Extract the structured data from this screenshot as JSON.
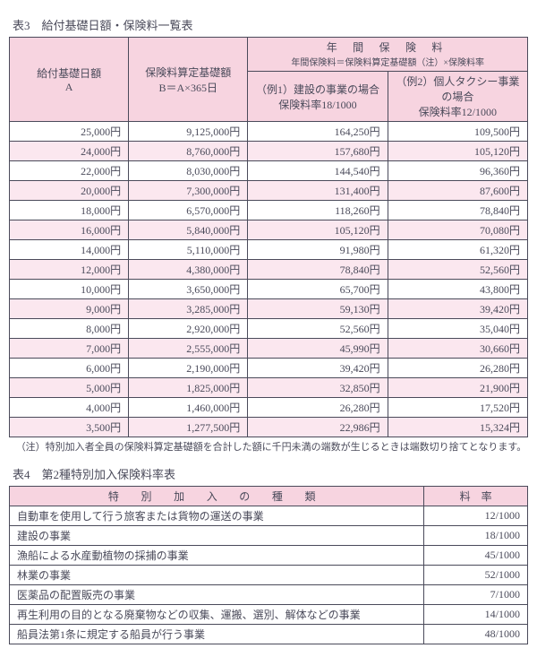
{
  "colors": {
    "header_bg": "#f7d4e0",
    "alt_row_bg": "#fbe7ef",
    "border": "#4a4a5a",
    "text": "#4a4a5a"
  },
  "table3": {
    "title": "表3　給付基礎日額・保険料一覧表",
    "headers": {
      "colA_line1": "給付基礎日額",
      "colA_line2": "A",
      "colB_line1": "保険料算定基礎額",
      "colB_line2": "B＝A×365日",
      "premium_header": "年 間 保 険 料",
      "premium_formula": "年間保険料＝保険料算定基礎額（注）×保険料率",
      "ex1_line1": "（例1）建設の事業の場合",
      "ex1_line2": "保険料率18/1000",
      "ex2_line1": "（例2）個人タクシー事業の場合",
      "ex2_line2": "保険料率12/1000"
    },
    "rows": [
      {
        "a": "25,000円",
        "b": "9,125,000円",
        "c": "164,250円",
        "d": "109,500円"
      },
      {
        "a": "24,000円",
        "b": "8,760,000円",
        "c": "157,680円",
        "d": "105,120円"
      },
      {
        "a": "22,000円",
        "b": "8,030,000円",
        "c": "144,540円",
        "d": "96,360円"
      },
      {
        "a": "20,000円",
        "b": "7,300,000円",
        "c": "131,400円",
        "d": "87,600円"
      },
      {
        "a": "18,000円",
        "b": "6,570,000円",
        "c": "118,260円",
        "d": "78,840円"
      },
      {
        "a": "16,000円",
        "b": "5,840,000円",
        "c": "105,120円",
        "d": "70,080円"
      },
      {
        "a": "14,000円",
        "b": "5,110,000円",
        "c": "91,980円",
        "d": "61,320円"
      },
      {
        "a": "12,000円",
        "b": "4,380,000円",
        "c": "78,840円",
        "d": "52,560円"
      },
      {
        "a": "10,000円",
        "b": "3,650,000円",
        "c": "65,700円",
        "d": "43,800円"
      },
      {
        "a": "9,000円",
        "b": "3,285,000円",
        "c": "59,130円",
        "d": "39,420円"
      },
      {
        "a": "8,000円",
        "b": "2,920,000円",
        "c": "52,560円",
        "d": "35,040円"
      },
      {
        "a": "7,000円",
        "b": "2,555,000円",
        "c": "45,990円",
        "d": "30,660円"
      },
      {
        "a": "6,000円",
        "b": "2,190,000円",
        "c": "39,420円",
        "d": "26,280円"
      },
      {
        "a": "5,000円",
        "b": "1,825,000円",
        "c": "32,850円",
        "d": "21,900円"
      },
      {
        "a": "4,000円",
        "b": "1,460,000円",
        "c": "26,280円",
        "d": "17,520円"
      },
      {
        "a": "3,500円",
        "b": "1,277,500円",
        "c": "22,986円",
        "d": "15,324円"
      }
    ],
    "note": "（注）特別加入者全員の保険料算定基礎額を合計した額に千円未満の端数が生じるときは端数切り捨てとなります。"
  },
  "table4": {
    "title": "表4　第2種特別加入保険料率表",
    "headers": {
      "type": "特 別 加 入 の 種 類",
      "rate": "料　率"
    },
    "rows": [
      {
        "type": "自動車を使用して行う旅客または貨物の運送の事業",
        "rate": "12/1000"
      },
      {
        "type": "建設の事業",
        "rate": "18/1000"
      },
      {
        "type": "漁船による水産動植物の採捕の事業",
        "rate": "45/1000"
      },
      {
        "type": "林業の事業",
        "rate": "52/1000"
      },
      {
        "type": "医薬品の配置販売の事業",
        "rate": "7/1000"
      },
      {
        "type": "再生利用の目的となる廃棄物などの収集、運搬、選別、解体などの事業",
        "rate": "14/1000"
      },
      {
        "type": "船員法第1条に規定する船員が行う事業",
        "rate": "48/1000"
      }
    ]
  }
}
